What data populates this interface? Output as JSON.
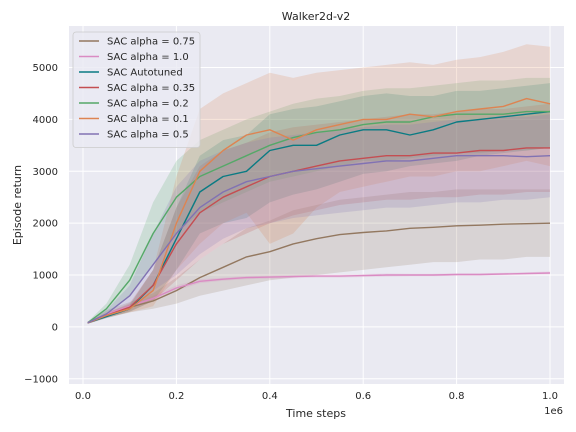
{
  "chart_data": {
    "type": "line",
    "title": "Walker2d-v2",
    "xlabel": "Time steps",
    "ylabel": "Episode return",
    "x_offset_label": "1e6",
    "xlim": [
      -0.03,
      1.03
    ],
    "ylim": [
      -1100,
      5800
    ],
    "xticks": [
      0.0,
      0.2,
      0.4,
      0.6,
      0.8,
      1.0
    ],
    "xtick_labels": [
      "0.0",
      "0.2",
      "0.4",
      "0.6",
      "0.8",
      "1.0"
    ],
    "yticks": [
      -1000,
      0,
      1000,
      2000,
      3000,
      4000,
      5000
    ],
    "ytick_labels": [
      "−1000",
      "0",
      "1000",
      "2000",
      "3000",
      "4000",
      "5000"
    ],
    "grid": true,
    "legend_position": "top-left",
    "x": [
      0.01,
      0.05,
      0.1,
      0.15,
      0.2,
      0.25,
      0.3,
      0.35,
      0.4,
      0.45,
      0.5,
      0.55,
      0.6,
      0.65,
      0.7,
      0.75,
      0.8,
      0.85,
      0.9,
      0.95,
      1.0
    ],
    "series": [
      {
        "name": "SAC alpha = 0.75",
        "color": "#937860",
        "values": [
          80,
          250,
          380,
          500,
          700,
          950,
          1150,
          1350,
          1450,
          1600,
          1700,
          1780,
          1820,
          1850,
          1900,
          1920,
          1950,
          1960,
          1980,
          1990,
          2000
        ],
        "lower": [
          60,
          180,
          280,
          350,
          450,
          600,
          700,
          800,
          900,
          950,
          1000,
          1050,
          1100,
          1150,
          1200,
          1250,
          1250,
          1300,
          1300,
          1350,
          1350
        ],
        "upper": [
          100,
          320,
          480,
          650,
          950,
          1300,
          1600,
          1900,
          2050,
          2250,
          2350,
          2450,
          2500,
          2550,
          2600,
          2600,
          2650,
          2650,
          2650,
          2650,
          2650
        ]
      },
      {
        "name": "SAC alpha = 1.0",
        "color": "#da8bc3",
        "values": [
          80,
          250,
          400,
          550,
          750,
          880,
          920,
          950,
          960,
          970,
          980,
          980,
          990,
          1000,
          1000,
          1000,
          1010,
          1010,
          1020,
          1030,
          1040
        ],
        "lower": [
          70,
          220,
          360,
          500,
          700,
          840,
          890,
          920,
          930,
          940,
          950,
          950,
          960,
          970,
          975,
          975,
          985,
          985,
          995,
          1005,
          1010
        ],
        "upper": [
          90,
          280,
          440,
          600,
          800,
          920,
          950,
          980,
          990,
          1000,
          1010,
          1010,
          1020,
          1030,
          1025,
          1025,
          1035,
          1035,
          1045,
          1055,
          1070
        ]
      },
      {
        "name": "SAC Autotuned",
        "color": "#0a7b83",
        "values": [
          80,
          200,
          350,
          800,
          1700,
          2600,
          2900,
          3000,
          3400,
          3500,
          3500,
          3700,
          3800,
          3800,
          3700,
          3800,
          3950,
          4000,
          4050,
          4100,
          4150
        ],
        "lower": [
          60,
          170,
          290,
          500,
          1100,
          1800,
          2000,
          2100,
          2400,
          2550,
          2650,
          2800,
          2950,
          3000,
          3100,
          3150,
          3200,
          3300,
          3350,
          3400,
          3450
        ],
        "upper": [
          100,
          230,
          420,
          1100,
          2300,
          3300,
          3600,
          3700,
          4100,
          4200,
          4250,
          4350,
          4450,
          4500,
          4450,
          4450,
          4550,
          4550,
          4600,
          4650,
          4700
        ]
      },
      {
        "name": "SAC alpha = 0.35",
        "color": "#c44e52",
        "values": [
          80,
          220,
          380,
          800,
          1600,
          2200,
          2500,
          2700,
          2900,
          3000,
          3100,
          3200,
          3250,
          3300,
          3300,
          3350,
          3350,
          3400,
          3400,
          3450,
          3450
        ],
        "lower": [
          60,
          180,
          300,
          500,
          900,
          1300,
          1600,
          1800,
          2000,
          2150,
          2250,
          2350,
          2400,
          2450,
          2450,
          2500,
          2500,
          2550,
          2550,
          2600,
          2600
        ],
        "upper": [
          100,
          260,
          460,
          1100,
          2300,
          3100,
          3400,
          3550,
          3750,
          3850,
          3900,
          3950,
          4000,
          4050,
          4100,
          4100,
          4150,
          4200,
          4200,
          4250,
          4300
        ]
      },
      {
        "name": "SAC alpha = 0.2",
        "color": "#55a868",
        "values": [
          80,
          350,
          900,
          1800,
          2500,
          2900,
          3100,
          3300,
          3500,
          3650,
          3750,
          3800,
          3900,
          3950,
          3950,
          4050,
          4100,
          4100,
          4100,
          4150,
          4150
        ],
        "lower": [
          60,
          250,
          600,
          1200,
          1800,
          2200,
          2400,
          2600,
          2800,
          2900,
          3000,
          3100,
          3200,
          3200,
          3250,
          3300,
          3350,
          3350,
          3400,
          3400,
          3450
        ],
        "upper": [
          100,
          450,
          1200,
          2400,
          3200,
          3600,
          3800,
          4000,
          4150,
          4300,
          4400,
          4450,
          4550,
          4600,
          4600,
          4650,
          4700,
          4750,
          4750,
          4800,
          4800
        ]
      },
      {
        "name": "SAC alpha = 0.1",
        "color": "#dd8452",
        "values": [
          80,
          220,
          350,
          700,
          2000,
          3000,
          3400,
          3700,
          3800,
          3600,
          3800,
          3900,
          4000,
          4000,
          4100,
          4050,
          4150,
          4200,
          4250,
          4400,
          4300
        ],
        "lower": [
          60,
          170,
          280,
          400,
          1100,
          1600,
          2000,
          2200,
          1600,
          1800,
          2300,
          2600,
          2700,
          2800,
          2900,
          2900,
          3000,
          3000,
          3100,
          3200,
          3100
        ],
        "upper": [
          100,
          270,
          430,
          1100,
          2900,
          4200,
          4500,
          4700,
          4900,
          4800,
          4900,
          4950,
          5000,
          5050,
          5100,
          5050,
          5150,
          5200,
          5300,
          5450,
          5400
        ]
      },
      {
        "name": "SAC alpha = 0.5",
        "color": "#8172b3",
        "values": [
          80,
          250,
          600,
          1200,
          1800,
          2300,
          2600,
          2800,
          2900,
          3000,
          3050,
          3100,
          3150,
          3200,
          3200,
          3250,
          3300,
          3300,
          3300,
          3280,
          3300
        ],
        "lower": [
          60,
          180,
          400,
          700,
          1000,
          1400,
          1700,
          1900,
          2000,
          2100,
          2150,
          2200,
          2250,
          2300,
          2300,
          2350,
          2400,
          2400,
          2450,
          2450,
          2500
        ],
        "upper": [
          100,
          320,
          800,
          1800,
          2700,
          3200,
          3400,
          3550,
          3650,
          3700,
          3750,
          3800,
          3850,
          3900,
          3900,
          3950,
          4000,
          4000,
          4050,
          4050,
          4100
        ]
      }
    ]
  },
  "colors": {
    "plot_background": "#eaeaf2",
    "grid": "#ffffff",
    "legend_background": "#eaeaf2",
    "legend_border": "#cccccc"
  }
}
